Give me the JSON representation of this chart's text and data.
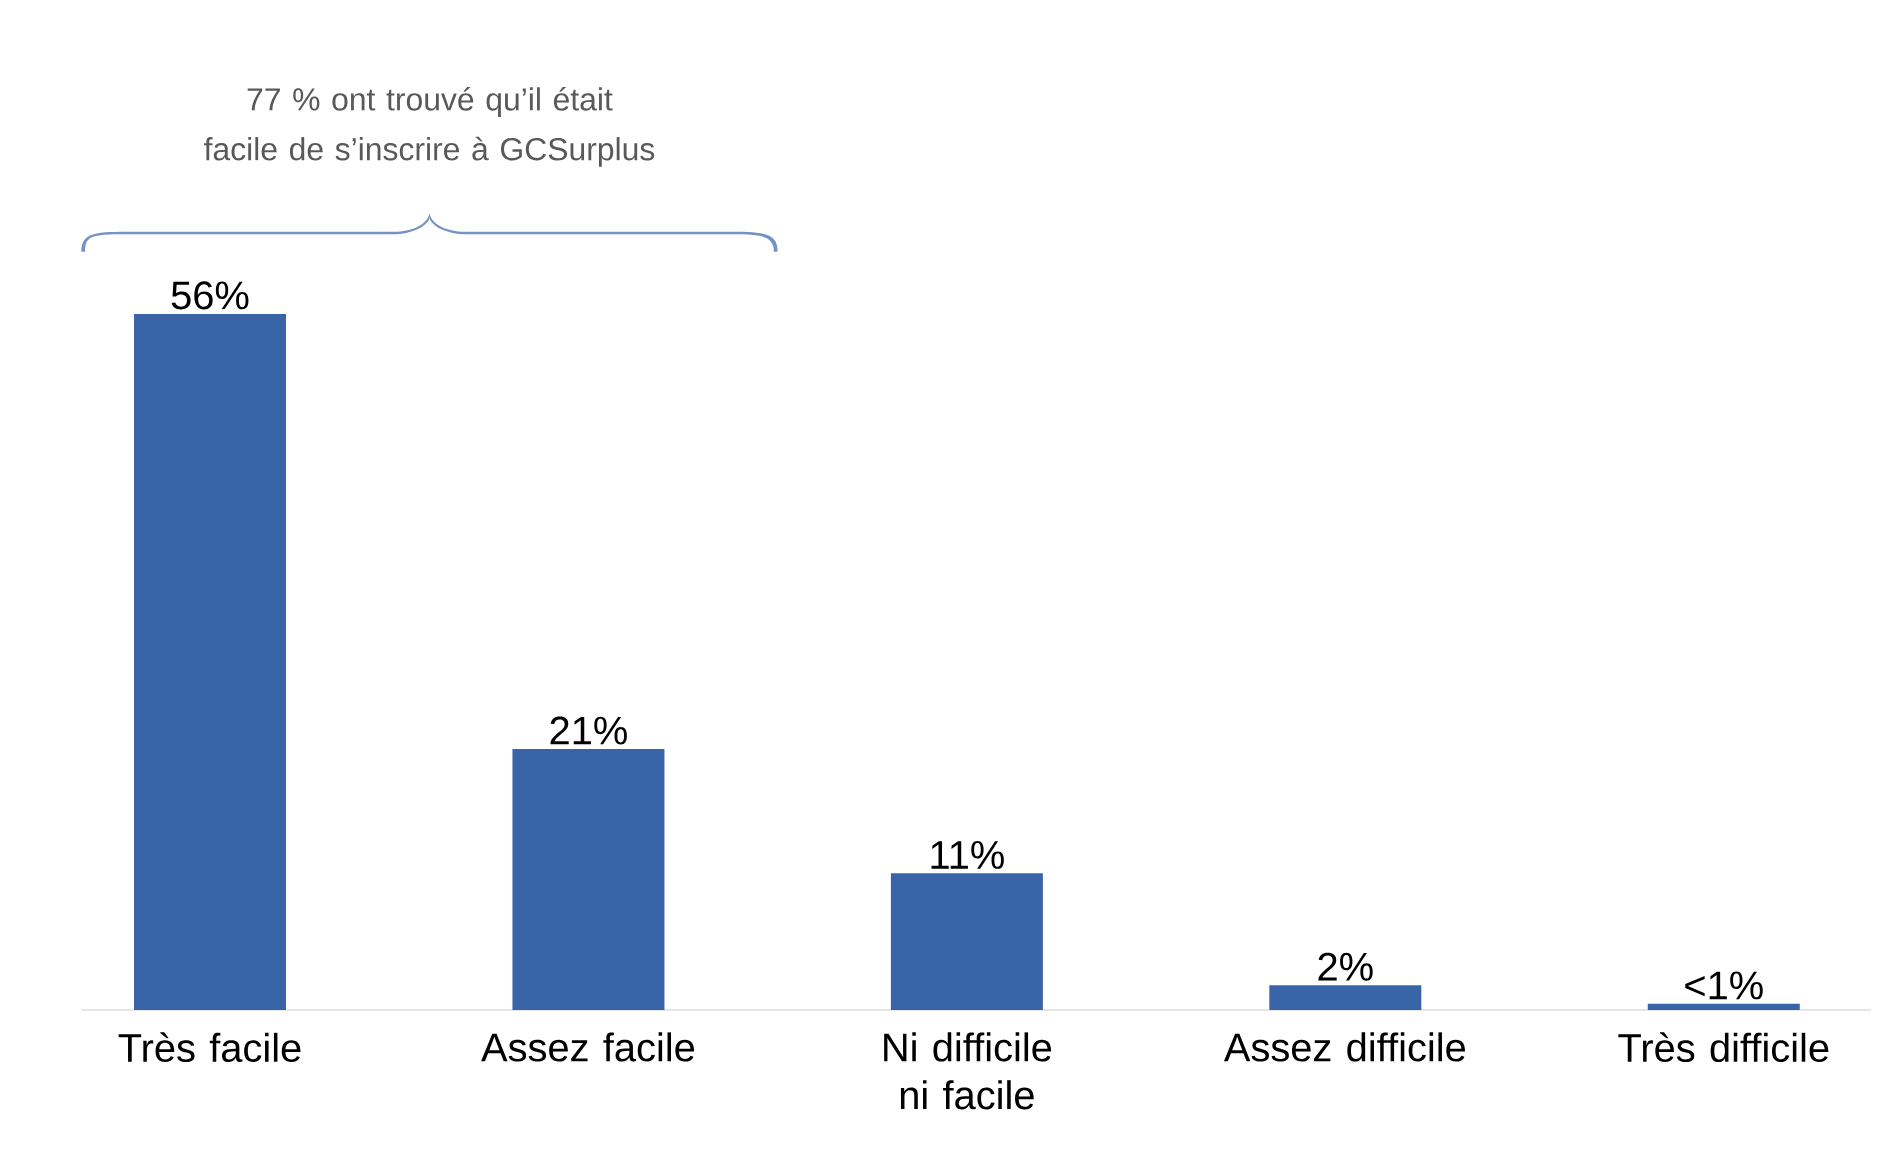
{
  "chart_data": {
    "type": "bar",
    "categories": [
      "Très facile",
      "Assez facile",
      "Ni difficile ni facile",
      "Assez difficile",
      "Très difficile"
    ],
    "values": [
      56,
      21,
      11,
      2,
      0.5
    ],
    "value_labels": [
      "56%",
      "21%",
      "11%",
      "2%",
      "<1%"
    ],
    "color": "#3a64a8",
    "annotations": [
      "77 % ont trouvé qu’il était facile de s’inscrire à GCSurplus"
    ]
  }
}
